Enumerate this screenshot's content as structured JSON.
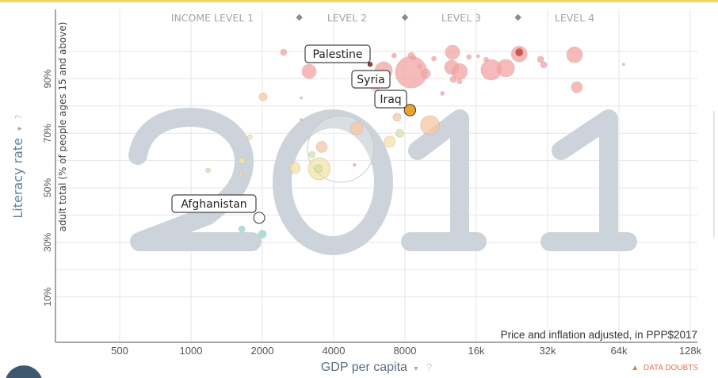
{
  "chart_data": {
    "type": "scatter",
    "year": "2011",
    "xlabel": "GDP per capita",
    "ylabel": "Literacy rate",
    "ylabel_sub": "adult total (% of people ages 15 and above)",
    "x_note": "Price and inflation adjusted, in PPP$2017",
    "x_scale": "log2",
    "xlim": [
      250,
      140000
    ],
    "ylim": [
      -7,
      100
    ],
    "x_ticks": [
      500,
      1000,
      2000,
      4000,
      8000,
      16000,
      32000,
      64000,
      128000
    ],
    "x_tick_labels": [
      "500",
      "1000",
      "2000",
      "4000",
      "8000",
      "16k",
      "32k",
      "64k",
      "128k"
    ],
    "y_gridlines": [
      10,
      20,
      30,
      40,
      50,
      60,
      70,
      80,
      90,
      100
    ],
    "y_ticks": [
      10,
      30,
      50,
      70,
      90
    ],
    "y_tick_labels": [
      "10%",
      "30%",
      "50%",
      "70%",
      "90%"
    ],
    "grid": true,
    "income_levels": [
      "INCOME LEVEL 1",
      "LEVEL 2",
      "LEVEL 3",
      "LEVEL 4"
    ],
    "income_level_bounds": [
      3000,
      8000,
      24000
    ],
    "colors": {
      "red": "#f4a3a3",
      "darkred": "#c0392b",
      "orange": "#f7c7a0",
      "yellow": "#f3e3a6",
      "green": "#cfe6a5",
      "cyan": "#8fd8cb",
      "iraq": "#e8a530",
      "white": "#ffffff"
    },
    "labeled_points": [
      {
        "name": "Palestine",
        "gdp": 5700,
        "literacy": 95.3,
        "pop": 4,
        "color": "darkred"
      },
      {
        "name": "Syria",
        "gdp": 6000,
        "literacy": 87,
        "pop": 21,
        "color": "red"
      },
      {
        "name": "Iraq",
        "gdp": 8400,
        "literacy": 78.5,
        "pop": 31,
        "color": "iraq"
      },
      {
        "name": "Afghanistan",
        "gdp": 1940,
        "literacy": 39,
        "pop": 29,
        "color": "white"
      }
    ],
    "points": [
      {
        "gdp": 2460,
        "literacy": 99.7,
        "pop": 9.6,
        "color": "red"
      },
      {
        "gdp": 3150,
        "literacy": 92.7,
        "pop": 49,
        "color": "red"
      },
      {
        "gdp": 2015,
        "literacy": 83.4,
        "pop": 15,
        "color": "orange"
      },
      {
        "gdp": 1770,
        "literacy": 68.6,
        "pop": 5.4,
        "color": "yellow"
      },
      {
        "gdp": 1640,
        "literacy": 59.9,
        "pop": 9.6,
        "color": "yellow"
      },
      {
        "gdp": 1620,
        "literacy": 55,
        "pop": 3.7,
        "color": "yellow"
      },
      {
        "gdp": 1180,
        "literacy": 56.4,
        "pop": 5.4,
        "color": "green"
      },
      {
        "gdp": 2744,
        "literacy": 57.3,
        "pop": 29,
        "color": "yellow"
      },
      {
        "gdp": 3240,
        "literacy": 62.2,
        "pop": 9.6,
        "color": "green"
      },
      {
        "gdp": 3563,
        "literacy": 65,
        "pop": 29,
        "color": "orange"
      },
      {
        "gdp": 3480,
        "literacy": 57,
        "pop": 118,
        "color": "yellow"
      },
      {
        "gdp": 3450,
        "literacy": 57,
        "pop": 15,
        "color": "green"
      },
      {
        "gdp": 5000,
        "literacy": 71.8,
        "pop": 38,
        "color": "orange"
      },
      {
        "gdp": 4900,
        "literacy": 58.4,
        "pop": 2.4,
        "color": "red"
      },
      {
        "gdp": 1640,
        "literacy": 34.9,
        "pop": 9.6,
        "color": "cyan"
      },
      {
        "gdp": 2000,
        "literacy": 33,
        "pop": 15,
        "color": "cyan"
      },
      {
        "gdp": 7400,
        "literacy": 75.9,
        "pop": 15,
        "color": "orange"
      },
      {
        "gdp": 7600,
        "literacy": 70,
        "pop": 15,
        "color": "green"
      },
      {
        "gdp": 6900,
        "literacy": 66.9,
        "pop": 29,
        "color": "yellow"
      },
      {
        "gdp": 10200,
        "literacy": 73,
        "pop": 86,
        "color": "orange"
      },
      {
        "gdp": 6500,
        "literacy": 93,
        "pop": 73,
        "color": "red"
      },
      {
        "gdp": 8500,
        "literacy": 92.4,
        "pop": 240,
        "color": "red"
      },
      {
        "gdp": 9780,
        "literacy": 91.9,
        "pop": 21.6,
        "color": "red"
      },
      {
        "gdp": 8500,
        "literacy": 98.5,
        "pop": 9.6,
        "color": "red"
      },
      {
        "gdp": 8700,
        "literacy": 97.7,
        "pop": 5.4,
        "color": "red"
      },
      {
        "gdp": 12700,
        "literacy": 99.7,
        "pop": 49,
        "color": "red"
      },
      {
        "gdp": 12600,
        "literacy": 94.2,
        "pop": 49,
        "color": "red"
      },
      {
        "gdp": 13600,
        "literacy": 92.7,
        "pop": 60,
        "color": "red"
      },
      {
        "gdp": 12800,
        "literacy": 89.8,
        "pop": 9.6,
        "color": "red"
      },
      {
        "gdp": 13600,
        "literacy": 89,
        "pop": 5.4,
        "color": "red"
      },
      {
        "gdp": 14900,
        "literacy": 98,
        "pop": 5.4,
        "color": "red"
      },
      {
        "gdp": 18500,
        "literacy": 93.3,
        "pop": 101,
        "color": "red"
      },
      {
        "gdp": 21300,
        "literacy": 93.9,
        "pop": 73,
        "color": "red"
      },
      {
        "gdp": 24300,
        "literacy": 99.1,
        "pop": 60,
        "color": "red"
      },
      {
        "gdp": 24300,
        "literacy": 99.7,
        "pop": 15,
        "color": "darkred"
      },
      {
        "gdp": 29900,
        "literacy": 97.1,
        "pop": 9.6,
        "color": "red"
      },
      {
        "gdp": 30800,
        "literacy": 95.1,
        "pop": 9.6,
        "color": "red"
      },
      {
        "gdp": 41600,
        "literacy": 98.8,
        "pop": 60,
        "color": "red"
      },
      {
        "gdp": 42500,
        "literacy": 86.9,
        "pop": 29,
        "color": "red"
      },
      {
        "gdp": 67000,
        "literacy": 95.3,
        "pop": 1.4,
        "color": "red"
      },
      {
        "gdp": 16300,
        "literacy": 98.3,
        "pop": 2.4,
        "color": "red"
      },
      {
        "gdp": 17600,
        "literacy": 97.1,
        "pop": 5.4,
        "color": "red"
      },
      {
        "gdp": 10600,
        "literacy": 97.4,
        "pop": 5.4,
        "color": "red"
      },
      {
        "gdp": 9250,
        "literacy": 94.5,
        "pop": 5.4,
        "color": "red"
      },
      {
        "gdp": 7200,
        "literacy": 98.5,
        "pop": 5.4,
        "color": "red"
      },
      {
        "gdp": 11500,
        "literacy": 84.6,
        "pop": 3.7,
        "color": "red"
      },
      {
        "gdp": 2920,
        "literacy": 83,
        "pop": 1.4,
        "color": "red"
      },
      {
        "gdp": 2920,
        "literacy": 75,
        "pop": 1.4,
        "color": "red"
      }
    ],
    "size_legend": "population"
  },
  "ui": {
    "ylabel_arrow": "▾",
    "xlabel_arrow": "▾",
    "help": "?",
    "data_doubts": "DATA DOUBTS",
    "warning_icon": "▲"
  }
}
